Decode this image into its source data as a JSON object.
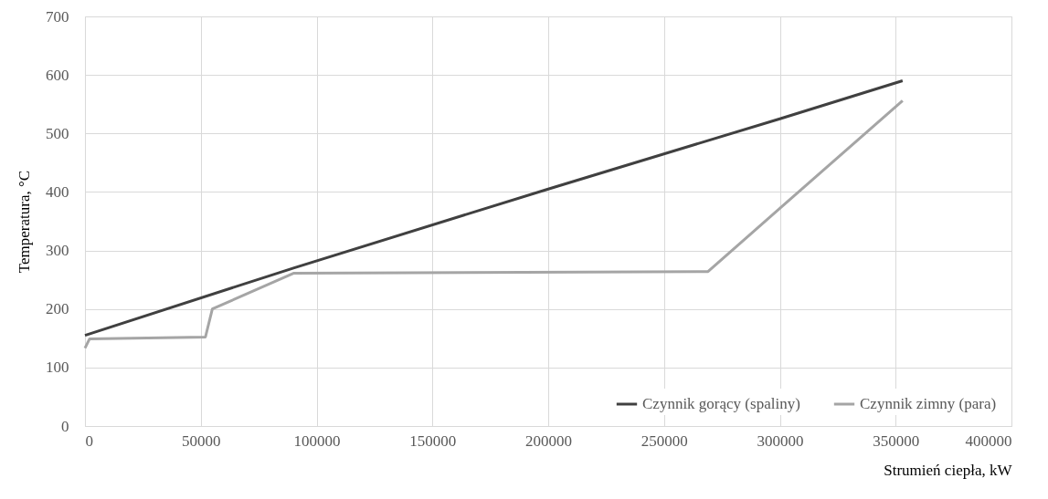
{
  "chart_data": {
    "type": "line",
    "xlabel": "Strumień ciepła, kW",
    "ylabel": "Temperatura, °C",
    "xlim": [
      0,
      400000
    ],
    "xticks": [
      0,
      50000,
      100000,
      150000,
      200000,
      250000,
      300000,
      350000,
      400000
    ],
    "ylim": [
      0,
      700
    ],
    "yticks": [
      0,
      100,
      200,
      300,
      400,
      500,
      600,
      700
    ],
    "grid": true,
    "legend": "bottom right",
    "line_style": "solid",
    "marker": "none",
    "series": [
      {
        "name": "Czynnik gorący (spaliny)",
        "color": "#404040",
        "x": [
          0,
          90000,
          200000,
          300000,
          353000
        ],
        "values": [
          155,
          270,
          405,
          525,
          590
        ]
      },
      {
        "name": "Czynnik zimny (para)",
        "color": "#a5a5a5",
        "x": [
          0,
          2000,
          52000,
          55000,
          90000,
          269000,
          300000,
          353000
        ],
        "values": [
          133,
          149,
          152,
          200,
          261,
          264,
          372,
          556
        ]
      }
    ]
  }
}
